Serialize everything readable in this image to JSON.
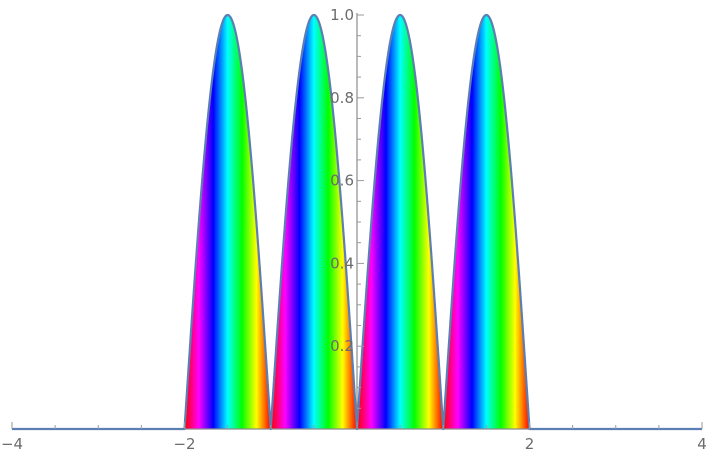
{
  "chart_data": {
    "type": "area",
    "title": "",
    "xlabel": "",
    "ylabel": "",
    "xlim": [
      -4,
      4
    ],
    "ylim": [
      0,
      1.0
    ],
    "function": "abs(sin(pi*x)) for |x| <= 2, else 0",
    "fill_style": "rainbow hue gradient repeating along x",
    "grid": false,
    "x_ticks": [
      {
        "value": -4,
        "label": "-4"
      },
      {
        "value": -2,
        "label": "-2"
      },
      {
        "value": 0,
        "label": ""
      },
      {
        "value": 2,
        "label": "2"
      },
      {
        "value": 4,
        "label": "4"
      }
    ],
    "y_ticks": [
      {
        "value": 0.2,
        "label": "0.2"
      },
      {
        "value": 0.4,
        "label": "0.4"
      },
      {
        "value": 0.6,
        "label": "0.6"
      },
      {
        "value": 0.8,
        "label": "0.8"
      },
      {
        "value": 1.0,
        "label": "1.0"
      }
    ],
    "series": [
      {
        "points": [
          {
            "x": -4,
            "y": 0
          },
          {
            "x": -2,
            "y": 0
          },
          {
            "x": -1.5,
            "y": 1.0
          },
          {
            "x": -1,
            "y": 0
          },
          {
            "x": -0.5,
            "y": 1.0
          },
          {
            "x": 0,
            "y": 0
          },
          {
            "x": 0.5,
            "y": 1.0
          },
          {
            "x": 1,
            "y": 0
          },
          {
            "x": 1.5,
            "y": 1.0
          },
          {
            "x": 2,
            "y": 0
          },
          {
            "x": 4,
            "y": 0
          }
        ]
      }
    ],
    "colors": {
      "curve": "#5b7fb4",
      "axis": "#8c8c8c",
      "tick_label": "#6b6b6b",
      "fill_hues": [
        "#ff0000",
        "#ff00ff",
        "#0000ff",
        "#00ffff",
        "#00ff00",
        "#ffff00"
      ]
    }
  }
}
